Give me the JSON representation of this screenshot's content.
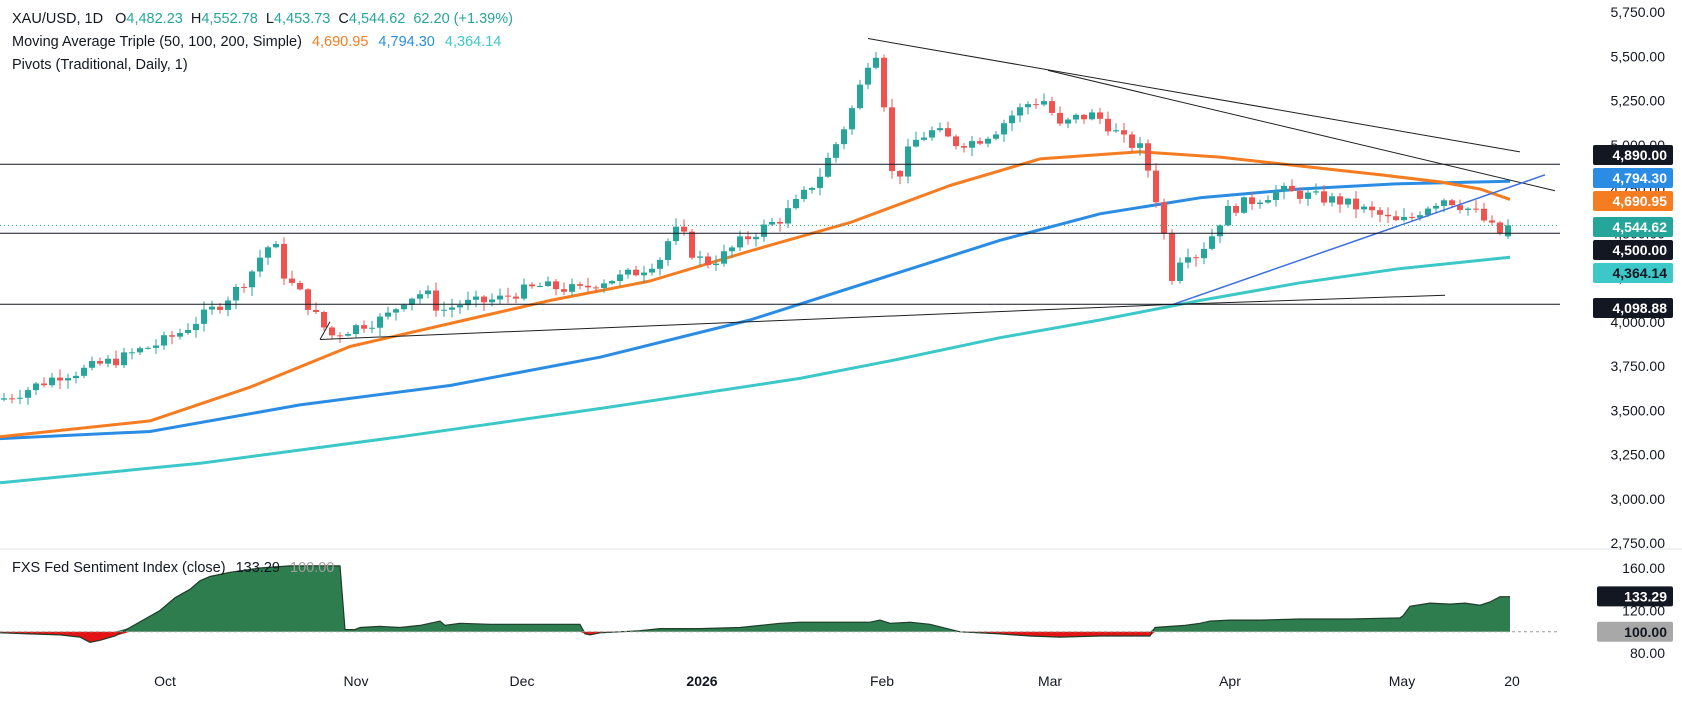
{
  "header": {
    "symbol": "XAU/USD, 1D",
    "o_label": "O",
    "o_value": "4,482.23",
    "h_label": "H",
    "h_value": "4,552.78",
    "l_label": "L",
    "l_value": "4,453.73",
    "c_label": "C",
    "c_value": "4,544.62",
    "change": "62.20 (+1.39%)"
  },
  "ma_legend": {
    "label": "Moving Average Triple (50, 100, 200, Simple)",
    "v50": "4,690.95",
    "v100": "4,794.30",
    "v200": "4,364.14"
  },
  "pivots_legend": {
    "label": "Pivots (Traditional, Daily, 1)"
  },
  "indicator_legend": {
    "label": "FXS Fed Sentiment Index (close)",
    "value": "133.29",
    "baseline": "100.00"
  },
  "colors": {
    "up": "#26a69a",
    "down": "#ef5350",
    "ma50": "#f57c20",
    "ma100": "#2b8ce4",
    "ma200": "#3cc8c8",
    "area_pos": "#2e7d4f",
    "area_neg": "#e31414",
    "trend": "#1f1f1f",
    "support": "#3b6fe0"
  },
  "chart_data": [
    {
      "type": "candlestick",
      "title": "XAU/USD, 1D",
      "ylim": [
        2750,
        5750
      ],
      "y_ticks": [
        "5,750.00",
        "5,500.00",
        "5,250.00",
        "5,000.00",
        "4,750.00",
        "4,500.00",
        "4,250.00",
        "4,000.00",
        "3,750.00",
        "3,500.00",
        "3,250.00",
        "3,000.00",
        "2,750.00"
      ],
      "x_ticks": [
        "Oct",
        "Nov",
        "Dec",
        "2026",
        "Feb",
        "Mar",
        "Apr",
        "May",
        "20"
      ],
      "last_bar": {
        "open": 4482.23,
        "high": 4552.78,
        "low": 4453.73,
        "close": 4544.62
      },
      "series": [
        {
          "name": "SMA 50",
          "last": 4690.95
        },
        {
          "name": "SMA 100",
          "last": 4794.3
        },
        {
          "name": "SMA 200",
          "last": 4364.14
        }
      ],
      "price_labels": [
        {
          "text": "4,890.00",
          "value": 4890.0,
          "style": "pivot"
        },
        {
          "text": "4,794.30",
          "value": 4794.3,
          "style": "ma100"
        },
        {
          "text": "4,690.95",
          "value": 4690.95,
          "style": "ma50"
        },
        {
          "text": "4,544.62",
          "value": 4544.62,
          "style": "last"
        },
        {
          "text": "4,500.00",
          "value": 4500.0,
          "style": "pivot"
        },
        {
          "text": "4,364.14",
          "value": 4364.14,
          "style": "ma200"
        },
        {
          "text": "4,098.88",
          "value": 4098.88,
          "style": "pivot"
        }
      ],
      "pivot_levels": [
        4890.0,
        4500.0,
        4098.88
      ]
    },
    {
      "type": "area",
      "title": "FXS Fed Sentiment Index (close)",
      "baseline": 100,
      "ylim": [
        80,
        160
      ],
      "y_ticks": [
        "160.00",
        "120.00",
        "80.00"
      ],
      "last": 133.29
    }
  ]
}
